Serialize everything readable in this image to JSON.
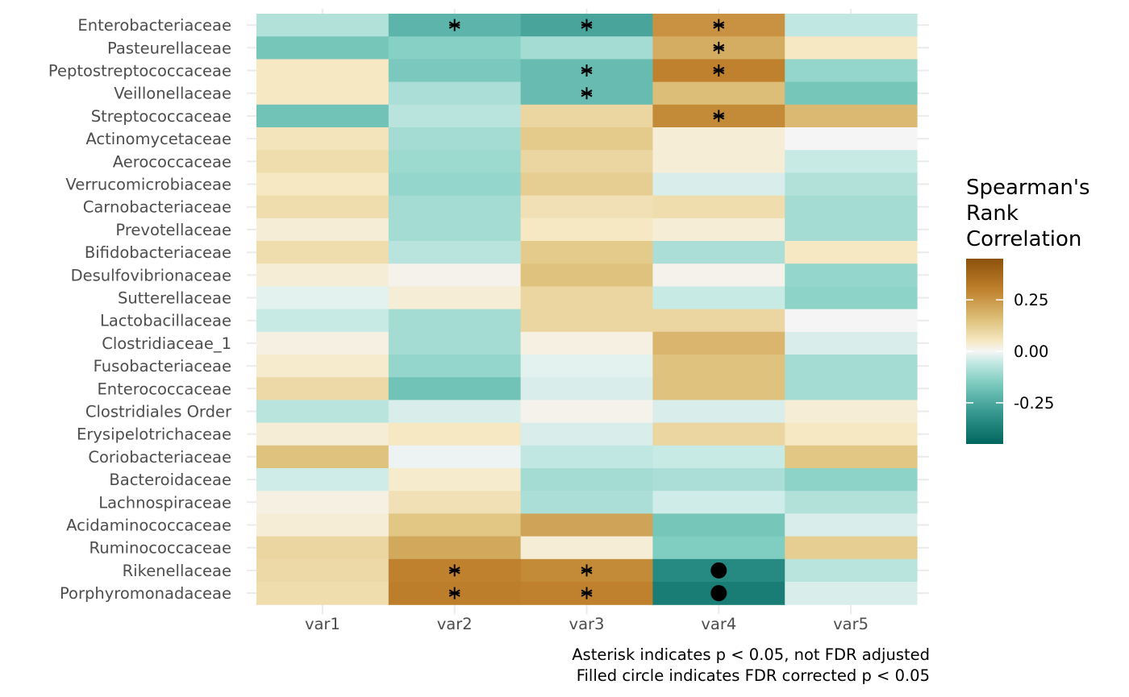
{
  "chart_data": {
    "type": "heatmap",
    "title": "",
    "xlabel": "",
    "ylabel": "",
    "x_categories": [
      "var1",
      "var2",
      "var3",
      "var4",
      "var5"
    ],
    "y_categories": [
      "Enterobacteriaceae",
      "Pasteurellaceae",
      "Peptostreptococcaceae",
      "Veillonellaceae",
      "Streptococcaceae",
      "Actinomycetaceae",
      "Aerococcaceae",
      "Verrucomicrobiaceae",
      "Carnobacteriaceae",
      "Prevotellaceae",
      "Bifidobacteriaceae",
      "Desulfovibrionaceae",
      "Sutterellaceae",
      "Lactobacillaceae",
      "Clostridiaceae_1",
      "Fusobacteriaceae",
      "Enterococcaceae",
      "Clostridiales Order",
      "Erysipelotrichaceae",
      "Coriobacteriaceae",
      "Bacteroidaceae",
      "Lachnospiraceae",
      "Acidaminococcaceae",
      "Ruminococcaceae",
      "Rikenellaceae",
      "Porphyromonadaceae"
    ],
    "values": [
      [
        -0.08,
        -0.22,
        -0.26,
        0.26,
        -0.06
      ],
      [
        -0.17,
        -0.14,
        -0.1,
        0.2,
        0.05
      ],
      [
        0.05,
        -0.16,
        -0.2,
        0.3,
        -0.12
      ],
      [
        0.05,
        -0.09,
        -0.2,
        0.16,
        -0.17
      ],
      [
        -0.18,
        -0.07,
        0.1,
        0.28,
        0.17
      ],
      [
        0.06,
        -0.1,
        0.13,
        0.03,
        0.0
      ],
      [
        0.08,
        -0.11,
        0.1,
        0.03,
        -0.05
      ],
      [
        0.05,
        -0.12,
        0.12,
        -0.03,
        -0.08
      ],
      [
        0.08,
        -0.1,
        0.07,
        0.08,
        -0.1
      ],
      [
        0.03,
        -0.1,
        0.05,
        0.03,
        -0.1
      ],
      [
        0.08,
        -0.07,
        0.13,
        -0.09,
        0.05
      ],
      [
        0.03,
        0.01,
        0.15,
        0.01,
        -0.12
      ],
      [
        -0.02,
        0.03,
        0.1,
        -0.05,
        -0.13
      ],
      [
        -0.05,
        -0.1,
        0.1,
        0.1,
        0.0
      ],
      [
        0.02,
        -0.1,
        0.02,
        0.18,
        -0.03
      ],
      [
        0.04,
        -0.12,
        -0.02,
        0.15,
        -0.1
      ],
      [
        0.09,
        -0.18,
        -0.03,
        0.15,
        -0.1
      ],
      [
        -0.07,
        -0.03,
        0.01,
        -0.03,
        0.03
      ],
      [
        0.03,
        0.05,
        -0.03,
        0.1,
        0.05
      ],
      [
        0.15,
        -0.01,
        -0.06,
        -0.05,
        0.14
      ],
      [
        -0.04,
        0.04,
        -0.1,
        -0.09,
        -0.13
      ],
      [
        0.02,
        0.07,
        -0.09,
        -0.04,
        -0.08
      ],
      [
        0.03,
        0.14,
        0.22,
        -0.17,
        -0.03
      ],
      [
        0.1,
        0.21,
        0.03,
        -0.15,
        0.12
      ],
      [
        0.09,
        0.3,
        0.28,
        -0.34,
        -0.07
      ],
      [
        0.08,
        0.31,
        0.3,
        -0.38,
        -0.03
      ]
    ],
    "markers": [
      {
        "row": 0,
        "col": 1,
        "type": "asterisk"
      },
      {
        "row": 0,
        "col": 2,
        "type": "asterisk"
      },
      {
        "row": 0,
        "col": 3,
        "type": "asterisk"
      },
      {
        "row": 1,
        "col": 3,
        "type": "asterisk"
      },
      {
        "row": 2,
        "col": 2,
        "type": "asterisk"
      },
      {
        "row": 2,
        "col": 3,
        "type": "asterisk"
      },
      {
        "row": 3,
        "col": 2,
        "type": "asterisk"
      },
      {
        "row": 4,
        "col": 3,
        "type": "asterisk"
      },
      {
        "row": 24,
        "col": 1,
        "type": "asterisk"
      },
      {
        "row": 24,
        "col": 2,
        "type": "asterisk"
      },
      {
        "row": 24,
        "col": 3,
        "type": "circle"
      },
      {
        "row": 25,
        "col": 1,
        "type": "asterisk"
      },
      {
        "row": 25,
        "col": 2,
        "type": "asterisk"
      },
      {
        "row": 25,
        "col": 3,
        "type": "circle"
      }
    ],
    "legend": {
      "title_lines": [
        "Spearman's",
        "Rank",
        "Correlation"
      ],
      "placement": "right",
      "range": [
        -0.45,
        0.45
      ],
      "ticks": [
        0.25,
        0.0,
        -0.25
      ],
      "tick_labels": [
        "0.25",
        "0.00",
        "-0.25"
      ]
    },
    "color_scale": {
      "type": "BrBG diverging",
      "stops": [
        {
          "value": -0.45,
          "color": "#01665e"
        },
        {
          "value": -0.3,
          "color": "#35978f"
        },
        {
          "value": -0.15,
          "color": "#80cdc1"
        },
        {
          "value": -0.05,
          "color": "#c7eae5"
        },
        {
          "value": 0.0,
          "color": "#f5f5f5"
        },
        {
          "value": 0.05,
          "color": "#f6e8c3"
        },
        {
          "value": 0.15,
          "color": "#dfc27d"
        },
        {
          "value": 0.3,
          "color": "#bf812d"
        },
        {
          "value": 0.45,
          "color": "#8c510a"
        }
      ]
    },
    "grid": true,
    "caption_lines": [
      "Asterisk indicates p < 0.05, not FDR adjusted",
      "Filled circle indicates FDR corrected p < 0.05"
    ]
  }
}
